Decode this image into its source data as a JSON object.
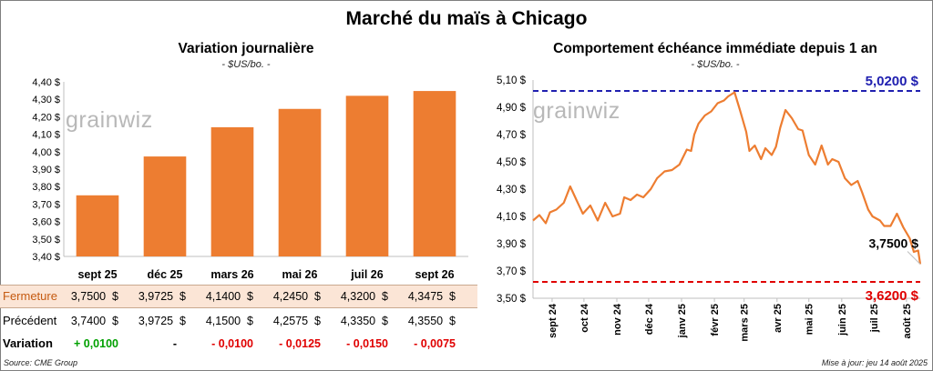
{
  "title": "Marché du maïs à Chicago",
  "left_chart": {
    "title": "Variation journalière",
    "unit": "- $US/bo. -"
  },
  "right_chart": {
    "title": "Comportement échéance immédiate depuis 1 an",
    "unit": "- $US/bo. -"
  },
  "logo": {
    "text": "grainwiz"
  },
  "table": {
    "rows": [
      {
        "label": "Fermeture",
        "values": [
          "3,7500  $",
          "3,9725  $",
          "4,1400  $",
          "4,2450  $",
          "4,3200  $",
          "4,3475  $"
        ]
      },
      {
        "label": "Précédent",
        "values": [
          "3,7400  $",
          "3,9725  $",
          "4,1500  $",
          "4,2575  $",
          "4,3350  $",
          "4,3550  $"
        ]
      },
      {
        "label": "Variation",
        "values": [
          "+ 0,0100",
          "-",
          "- 0,0100",
          "- 0,0125",
          "- 0,0150",
          "- 0,0075"
        ]
      }
    ]
  },
  "footer": {
    "source": "Source: CME Group",
    "updated": "Mise à jour: jeu 14 août 2025"
  },
  "colors": {
    "bar": "#ed7d31",
    "line": "#ed7d31",
    "max_line": "#2020b0",
    "min_line": "#e00000"
  },
  "chart_data": [
    {
      "type": "bar",
      "title": "Variation journalière",
      "categories": [
        "sept 25",
        "déc 25",
        "mars 26",
        "mai 26",
        "juil 26",
        "sept 26"
      ],
      "values": [
        3.75,
        3.9725,
        4.14,
        4.245,
        4.32,
        4.3475
      ],
      "ylim": [
        3.4,
        4.4
      ],
      "yticks": [
        3.4,
        3.5,
        3.6,
        3.7,
        3.8,
        3.9,
        4.0,
        4.1,
        4.2,
        4.3,
        4.4
      ],
      "ytick_labels": [
        "3,40 $",
        "3,50 $",
        "3,60 $",
        "3,70 $",
        "3,80 $",
        "3,90 $",
        "4,00 $",
        "4,10 $",
        "4,20 $",
        "4,30 $",
        "4,40 $"
      ],
      "grid": false,
      "legend": "none"
    },
    {
      "type": "line",
      "title": "Comportement échéance immédiate depuis 1 an",
      "ylim": [
        3.5,
        5.1
      ],
      "yticks": [
        3.5,
        3.7,
        3.9,
        4.1,
        4.3,
        4.5,
        4.7,
        4.9,
        5.1
      ],
      "ytick_labels": [
        "3,50 $",
        "3,70 $",
        "3,90 $",
        "4,10 $",
        "4,30 $",
        "4,50 $",
        "4,70 $",
        "4,90 $",
        "5,10 $"
      ],
      "xlim": [
        "2024-08-14",
        "2025-08-14"
      ],
      "xticks": [
        "2024-09-01",
        "2024-10-01",
        "2024-11-01",
        "2024-12-01",
        "2025-01-01",
        "2025-02-01",
        "2025-03-01",
        "2025-04-01",
        "2025-05-01",
        "2025-06-01",
        "2025-07-01",
        "2025-08-01"
      ],
      "xtick_labels": [
        "sept 24",
        "oct 24",
        "nov 24",
        "déc 24",
        "janv 25",
        "févr 25",
        "mars 25",
        "avr 25",
        "mai 25",
        "juin 25",
        "juil 25",
        "août 25"
      ],
      "max": {
        "value": 5.02,
        "label": "5,0200 $"
      },
      "min": {
        "value": 3.62,
        "label": "3,6200 $"
      },
      "last": {
        "value": 3.75,
        "label": "3,7500 $"
      },
      "series": [
        {
          "x": [
            "2024-08-14",
            "2024-08-20",
            "2024-08-26",
            "2024-08-30",
            "2024-09-05",
            "2024-09-12",
            "2024-09-18",
            "2024-09-24",
            "2024-09-30",
            "2024-10-07",
            "2024-10-14",
            "2024-10-21",
            "2024-10-28",
            "2024-11-04",
            "2024-11-08",
            "2024-11-14",
            "2024-11-20",
            "2024-11-26",
            "2024-12-03",
            "2024-12-09",
            "2024-12-16",
            "2024-12-23",
            "2024-12-30",
            "2025-01-06",
            "2025-01-10",
            "2025-01-13",
            "2025-01-17",
            "2025-01-23",
            "2025-01-29",
            "2025-02-04",
            "2025-02-10",
            "2025-02-14",
            "2025-02-20",
            "2025-02-25",
            "2025-03-03",
            "2025-03-06",
            "2025-03-11",
            "2025-03-17",
            "2025-03-21",
            "2025-03-27",
            "2025-03-31",
            "2025-04-04",
            "2025-04-09",
            "2025-04-15",
            "2025-04-21",
            "2025-04-25",
            "2025-05-01",
            "2025-05-07",
            "2025-05-13",
            "2025-05-19",
            "2025-05-23",
            "2025-05-29",
            "2025-06-04",
            "2025-06-10",
            "2025-06-16",
            "2025-06-20",
            "2025-06-26",
            "2025-06-30",
            "2025-07-07",
            "2025-07-11",
            "2025-07-17",
            "2025-07-23",
            "2025-07-29",
            "2025-08-04",
            "2025-08-08",
            "2025-08-12",
            "2025-08-14"
          ],
          "y": [
            4.07,
            4.11,
            4.05,
            4.13,
            4.15,
            4.2,
            4.32,
            4.22,
            4.12,
            4.18,
            4.07,
            4.2,
            4.1,
            4.12,
            4.24,
            4.22,
            4.26,
            4.24,
            4.3,
            4.38,
            4.43,
            4.44,
            4.48,
            4.59,
            4.58,
            4.7,
            4.78,
            4.84,
            4.87,
            4.93,
            4.95,
            4.98,
            5.01,
            4.88,
            4.72,
            4.58,
            4.62,
            4.52,
            4.6,
            4.55,
            4.61,
            4.75,
            4.88,
            4.82,
            4.74,
            4.73,
            4.55,
            4.48,
            4.62,
            4.48,
            4.52,
            4.5,
            4.38,
            4.33,
            4.36,
            4.28,
            4.15,
            4.1,
            4.07,
            4.03,
            4.03,
            4.12,
            4.02,
            3.94,
            3.84,
            3.85,
            3.75
          ]
        }
      ],
      "grid": false,
      "legend": "none"
    }
  ]
}
